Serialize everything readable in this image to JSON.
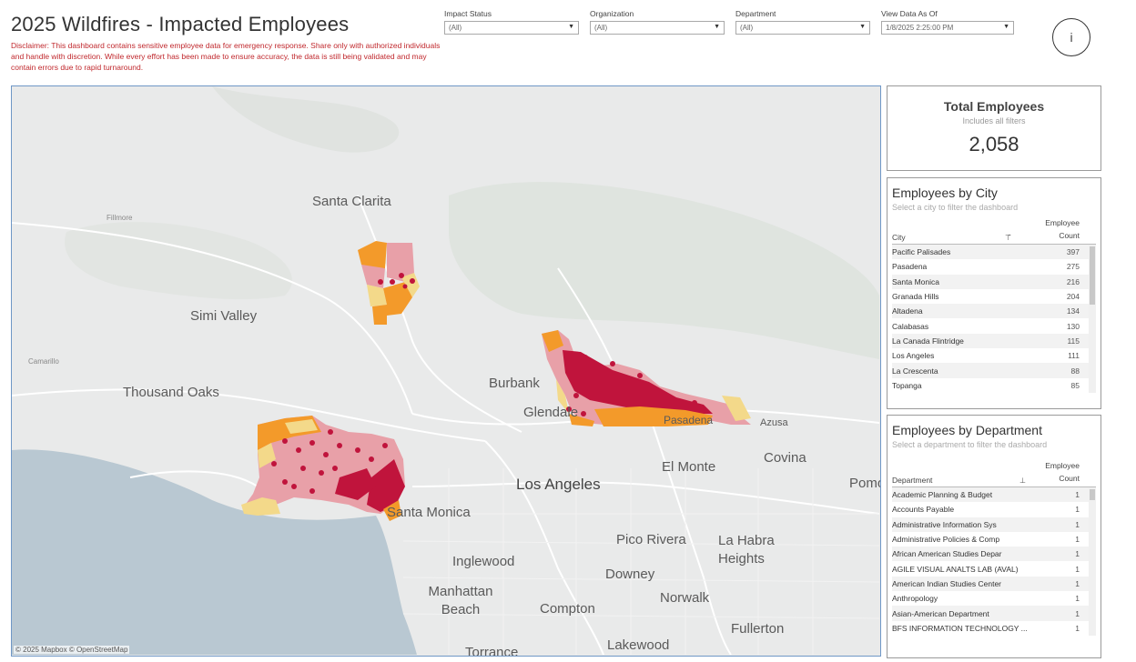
{
  "header": {
    "title": "2025 Wildfires - Impacted Employees",
    "disclaimer": "Disclaimer: This dashboard contains sensitive employee data for emergency response. Share only with authorized individuals and handle with discretion. While every effort has been made to ensure accuracy, the data is still being validated and may contain errors due to rapid turnaround."
  },
  "filters": [
    {
      "label": "Impact Status",
      "value": "(All)"
    },
    {
      "label": "Organization",
      "value": "(All)"
    },
    {
      "label": "Department",
      "value": "(All)"
    },
    {
      "label": "View Data As Of",
      "value": "1/8/2025 2:25:00 PM"
    }
  ],
  "help": {
    "label": "i",
    "icon": "info-circle-icon"
  },
  "map": {
    "places": {
      "santa_clarita": "Santa Clarita",
      "simi_valley": "Simi Valley",
      "thousand_oaks": "Thousand Oaks",
      "burbank": "Burbank",
      "glendale": "Glendale",
      "pasadena": "Pasadena",
      "azusa": "Azusa",
      "covina": "Covina",
      "el_monte": "El Monte",
      "los_angeles": "Los Angeles",
      "santa_monica": "Santa Monica",
      "inglewood": "Inglewood",
      "pico_rivera": "Pico Rivera",
      "la_habra_heights": "La Habra Heights",
      "downey": "Downey",
      "norwalk": "Norwalk",
      "manhattan_beach": "Manhattan Beach",
      "compton": "Compton",
      "fullerton": "Fullerton",
      "lakewood": "Lakewood",
      "torrance": "Torrance",
      "pomona": "Pomona",
      "fillmore": "Fillmore",
      "camarillo": "Camarillo"
    },
    "attribution": "© 2025 Mapbox  © OpenStreetMap",
    "colors": {
      "high": "#c0143c",
      "medium": "#e8a0a8",
      "orange": "#f39a2a",
      "light": "#f3d98a",
      "water": "#b9c8d2",
      "land": "#e9eaea"
    }
  },
  "total": {
    "title": "Total Employees",
    "subtitle": "Includes all filters",
    "value": "2,058"
  },
  "city_card": {
    "title": "Employees by City",
    "subtitle": "Select a city to filter the dashboard",
    "col_city": "City",
    "col_count": "Employee Count",
    "rows": [
      {
        "name": "Pacific Palisades",
        "count": "397"
      },
      {
        "name": "Pasadena",
        "count": "275"
      },
      {
        "name": "Santa Monica",
        "count": "216"
      },
      {
        "name": "Granada Hills",
        "count": "204"
      },
      {
        "name": "Altadena",
        "count": "134"
      },
      {
        "name": "Calabasas",
        "count": "130"
      },
      {
        "name": "La Canada Flintridge",
        "count": "115"
      },
      {
        "name": "Los Angeles",
        "count": "111"
      },
      {
        "name": "La Crescenta",
        "count": "88"
      },
      {
        "name": "Topanga",
        "count": "85"
      }
    ]
  },
  "dept_card": {
    "title": "Employees by Department",
    "subtitle": "Select a department to filter the dashboard",
    "col_dept": "Department",
    "col_count": "Employee Count",
    "rows": [
      {
        "name": "Academic Planning & Budget",
        "count": "1"
      },
      {
        "name": "Accounts Payable",
        "count": "1"
      },
      {
        "name": "Administrative Information Sys",
        "count": "1"
      },
      {
        "name": "Administrative Policies & Comp",
        "count": "1"
      },
      {
        "name": "African American Studies Depar",
        "count": "1"
      },
      {
        "name": "AGILE VISUAL ANALTS LAB (AVAL)",
        "count": "1"
      },
      {
        "name": "American Indian Studies Center",
        "count": "1"
      },
      {
        "name": "Anthropology",
        "count": "1"
      },
      {
        "name": "Asian-American Department",
        "count": "1"
      },
      {
        "name": "BFS INFORMATION TECHNOLOGY ...",
        "count": "1"
      }
    ]
  }
}
